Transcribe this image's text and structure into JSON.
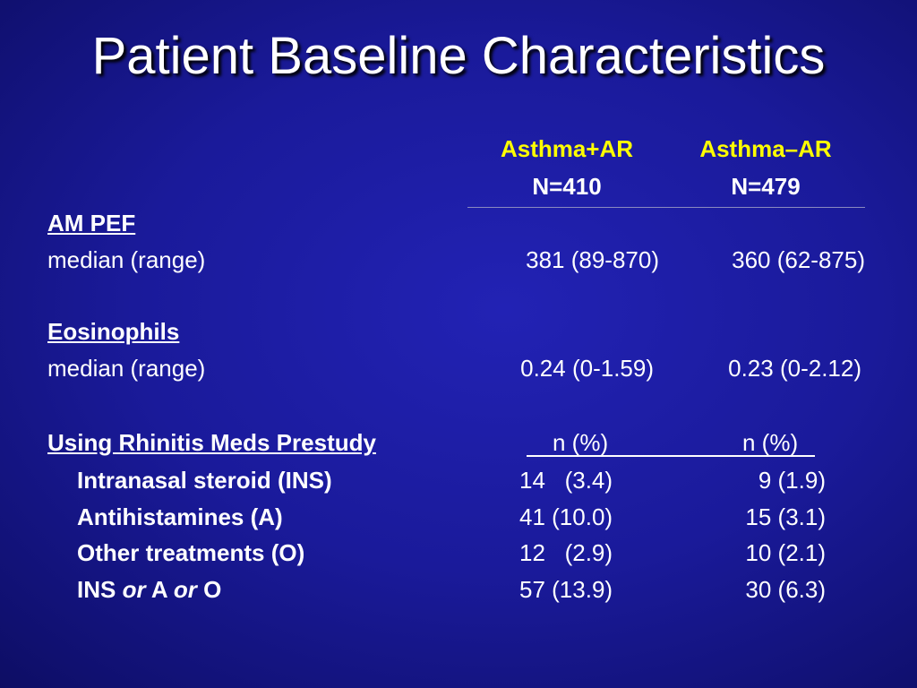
{
  "title": "Patient Baseline Characteristics",
  "columns": [
    {
      "name": "Asthma+AR",
      "n": "N=410"
    },
    {
      "name": "Asthma–AR",
      "n": "N=479"
    }
  ],
  "am_pef": {
    "heading": "AM PEF",
    "label": "median (range)",
    "values": [
      "381 (89-870)",
      "360 (62-875)"
    ]
  },
  "eosinophils": {
    "heading": "Eosinophils",
    "label": "median (range)",
    "values": [
      "0.24 (0-1.59)",
      "0.23 (0-2.12)"
    ]
  },
  "meds": {
    "heading": "Using Rhinitis Meds Prestudy",
    "col_headers": [
      "n  (%)",
      "n (%)"
    ],
    "rows": [
      {
        "label": "Intranasal steroid  (INS)",
        "values": [
          "14   (3.4)",
          "9 (1.9)"
        ]
      },
      {
        "label": "Antihistamines  (A)",
        "values": [
          "41 (10.0)",
          "15 (3.1)"
        ]
      },
      {
        "label": "Other treatments  (O)",
        "values": [
          "12   (2.9)",
          "10 (2.1)"
        ]
      },
      {
        "label_parts": [
          "INS ",
          "or",
          " A ",
          "or",
          " O"
        ],
        "values": [
          "57 (13.9)",
          "30 (6.3)"
        ]
      }
    ]
  },
  "colors": {
    "background": "#1a1a9a",
    "header_text": "#ffff00",
    "body_text": "#ffffff"
  }
}
